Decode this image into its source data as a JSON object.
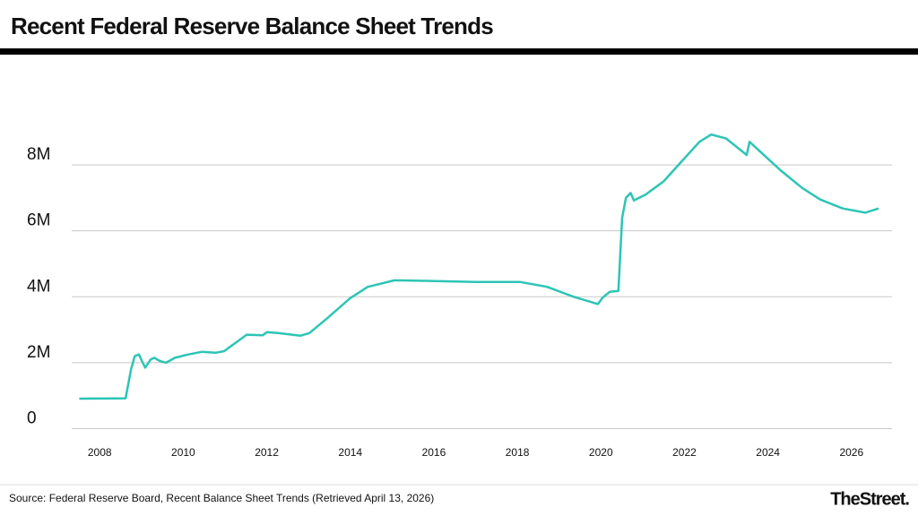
{
  "chart_data": {
    "type": "line",
    "title": "Recent Federal Reserve Balance Sheet Trends",
    "source": "Source: Federal Reserve Board, Recent Balance Sheet Trends (Retrieved April 13, 2026)",
    "logo": "TheStreet.",
    "xlim": [
      2007.33,
      2026.97
    ],
    "xticks": [
      2008,
      2010,
      2012,
      2014,
      2016,
      2018,
      2020,
      2022,
      2024,
      2026
    ],
    "ylim": [
      -150000,
      11100000
    ],
    "yticks": [
      {
        "value": 0,
        "label": "0"
      },
      {
        "value": 2000000,
        "label": "2M"
      },
      {
        "value": 4000000,
        "label": "4M"
      },
      {
        "value": 6000000,
        "label": "6M"
      },
      {
        "value": 8000000,
        "label": "8M"
      }
    ],
    "grid": true,
    "series": [
      {
        "color": "#2cc5b5",
        "x": [
          2007.51,
          2008.62,
          2008.75,
          2008.84,
          2008.94,
          2009.01,
          2009.09,
          2009.22,
          2009.31,
          2009.44,
          2009.59,
          2009.8,
          2010.12,
          2010.45,
          2010.77,
          2010.98,
          2011.52,
          2011.9,
          2012.01,
          2012.27,
          2012.81,
          2013.02,
          2013.45,
          2013.99,
          2014.42,
          2015.06,
          2015.92,
          2016.99,
          2018.06,
          2018.71,
          2019.35,
          2019.93,
          2020.04,
          2020.21,
          2020.42,
          2020.51,
          2020.6,
          2020.71,
          2020.79,
          2021.07,
          2021.5,
          2021.93,
          2022.36,
          2022.64,
          2023.0,
          2023.49,
          2023.56,
          2023.86,
          2024.29,
          2024.82,
          2025.25,
          2025.79,
          2026.33,
          2026.65
        ],
        "values": [
          910000,
          920000,
          1800000,
          2200000,
          2250000,
          2050000,
          1850000,
          2100000,
          2150000,
          2050000,
          2000000,
          2150000,
          2250000,
          2330000,
          2300000,
          2350000,
          2850000,
          2830000,
          2930000,
          2900000,
          2820000,
          2900000,
          3350000,
          3950000,
          4300000,
          4500000,
          4480000,
          4450000,
          4450000,
          4300000,
          4000000,
          3780000,
          3970000,
          4150000,
          4180000,
          6400000,
          7000000,
          7150000,
          6920000,
          7100000,
          7500000,
          8100000,
          8700000,
          8920000,
          8800000,
          8300000,
          8700000,
          8350000,
          7850000,
          7300000,
          6950000,
          6680000,
          6550000,
          6680000
        ]
      }
    ]
  }
}
